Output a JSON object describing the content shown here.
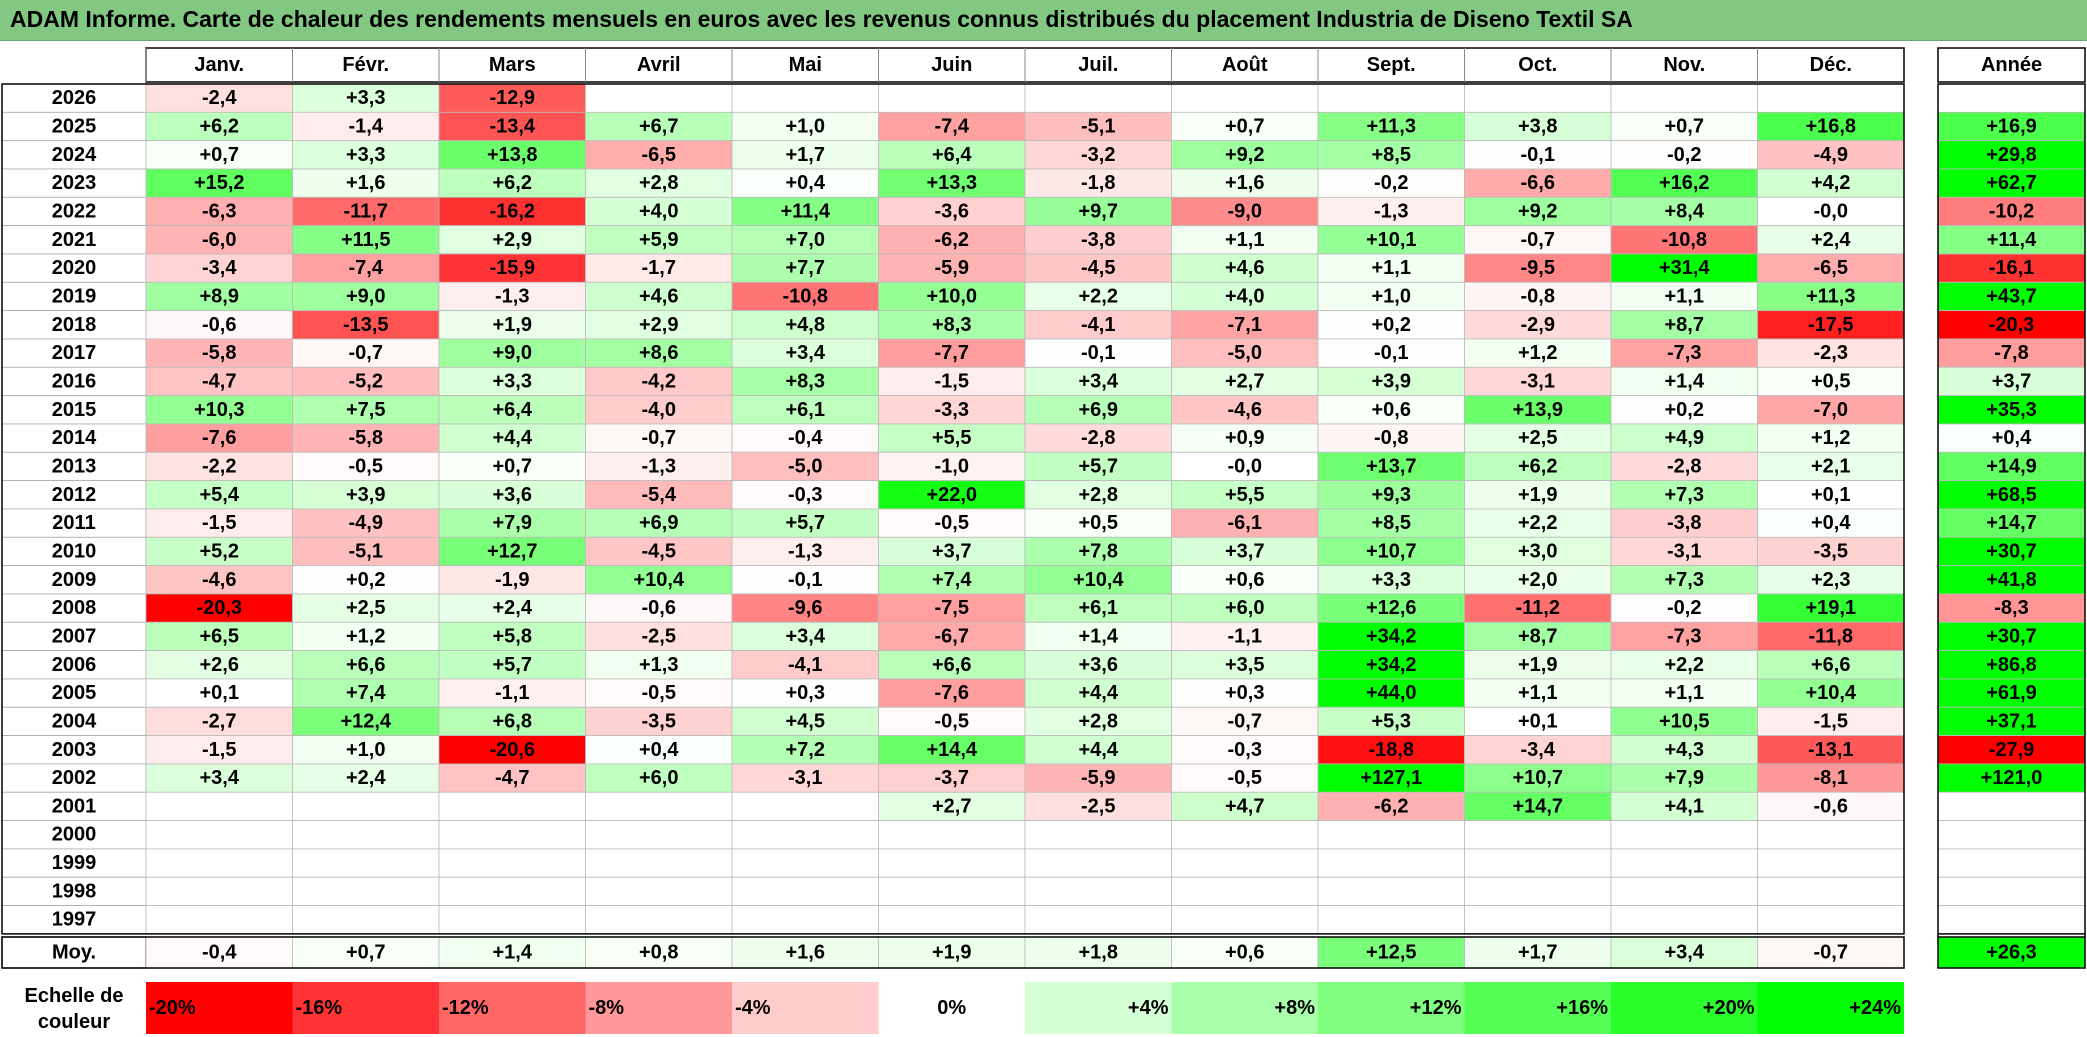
{
  "title": "ADAM Informe. Carte de chaleur des rendements mensuels en euros avec les revenus connus distribués du placement Industria de Diseno Textil SA",
  "chart_data": {
    "type": "heatmap",
    "title": "ADAM Informe. Carte de chaleur des rendements mensuels en euros avec les revenus connus distribués du placement Industria de Diseno Textil SA",
    "months": [
      "Janv.",
      "Févr.",
      "Mars",
      "Avril",
      "Mai",
      "Juin",
      "Juil.",
      "Août",
      "Sept.",
      "Oct.",
      "Nov.",
      "Déc."
    ],
    "year_header": "Année",
    "rows": [
      {
        "year": "2026",
        "values": [
          "-2,4",
          "+3,3",
          "-12,9",
          "",
          "",
          "",
          "",
          "",
          "",
          "",
          "",
          ""
        ],
        "annual": ""
      },
      {
        "year": "2025",
        "values": [
          "+6,2",
          "-1,4",
          "-13,4",
          "+6,7",
          "+1,0",
          "-7,4",
          "-5,1",
          "+0,7",
          "+11,3",
          "+3,8",
          "+0,7",
          "+16,8"
        ],
        "annual": "+16,9"
      },
      {
        "year": "2024",
        "values": [
          "+0,7",
          "+3,3",
          "+13,8",
          "-6,5",
          "+1,7",
          "+6,4",
          "-3,2",
          "+9,2",
          "+8,5",
          "-0,1",
          "-0,2",
          "-4,9"
        ],
        "annual": "+29,8"
      },
      {
        "year": "2023",
        "values": [
          "+15,2",
          "+1,6",
          "+6,2",
          "+2,8",
          "+0,4",
          "+13,3",
          "-1,8",
          "+1,6",
          "-0,2",
          "-6,6",
          "+16,2",
          "+4,2"
        ],
        "annual": "+62,7"
      },
      {
        "year": "2022",
        "values": [
          "-6,3",
          "-11,7",
          "-16,2",
          "+4,0",
          "+11,4",
          "-3,6",
          "+9,7",
          "-9,0",
          "-1,3",
          "+9,2",
          "+8,4",
          "-0,0"
        ],
        "annual": "-10,2"
      },
      {
        "year": "2021",
        "values": [
          "-6,0",
          "+11,5",
          "+2,9",
          "+5,9",
          "+7,0",
          "-6,2",
          "-3,8",
          "+1,1",
          "+10,1",
          "-0,7",
          "-10,8",
          "+2,4"
        ],
        "annual": "+11,4"
      },
      {
        "year": "2020",
        "values": [
          "-3,4",
          "-7,4",
          "-15,9",
          "-1,7",
          "+7,7",
          "-5,9",
          "-4,5",
          "+4,6",
          "+1,1",
          "-9,5",
          "+31,4",
          "-6,5"
        ],
        "annual": "-16,1"
      },
      {
        "year": "2019",
        "values": [
          "+8,9",
          "+9,0",
          "-1,3",
          "+4,6",
          "-10,8",
          "+10,0",
          "+2,2",
          "+4,0",
          "+1,0",
          "-0,8",
          "+1,1",
          "+11,3"
        ],
        "annual": "+43,7"
      },
      {
        "year": "2018",
        "values": [
          "-0,6",
          "-13,5",
          "+1,9",
          "+2,9",
          "+4,8",
          "+8,3",
          "-4,1",
          "-7,1",
          "+0,2",
          "-2,9",
          "+8,7",
          "-17,5"
        ],
        "annual": "-20,3"
      },
      {
        "year": "2017",
        "values": [
          "-5,8",
          "-0,7",
          "+9,0",
          "+8,6",
          "+3,4",
          "-7,7",
          "-0,1",
          "-5,0",
          "-0,1",
          "+1,2",
          "-7,3",
          "-2,3"
        ],
        "annual": "-7,8"
      },
      {
        "year": "2016",
        "values": [
          "-4,7",
          "-5,2",
          "+3,3",
          "-4,2",
          "+8,3",
          "-1,5",
          "+3,4",
          "+2,7",
          "+3,9",
          "-3,1",
          "+1,4",
          "+0,5"
        ],
        "annual": "+3,7"
      },
      {
        "year": "2015",
        "values": [
          "+10,3",
          "+7,5",
          "+6,4",
          "-4,0",
          "+6,1",
          "-3,3",
          "+6,9",
          "-4,6",
          "+0,6",
          "+13,9",
          "+0,2",
          "-7,0"
        ],
        "annual": "+35,3"
      },
      {
        "year": "2014",
        "values": [
          "-7,6",
          "-5,8",
          "+4,4",
          "-0,7",
          "-0,4",
          "+5,5",
          "-2,8",
          "+0,9",
          "-0,8",
          "+2,5",
          "+4,9",
          "+1,2"
        ],
        "annual": "+0,4"
      },
      {
        "year": "2013",
        "values": [
          "-2,2",
          "-0,5",
          "+0,7",
          "-1,3",
          "-5,0",
          "-1,0",
          "+5,7",
          "-0,0",
          "+13,7",
          "+6,2",
          "-2,8",
          "+2,1"
        ],
        "annual": "+14,9"
      },
      {
        "year": "2012",
        "values": [
          "+5,4",
          "+3,9",
          "+3,6",
          "-5,4",
          "-0,3",
          "+22,0",
          "+2,8",
          "+5,5",
          "+9,3",
          "+1,9",
          "+7,3",
          "+0,1"
        ],
        "annual": "+68,5"
      },
      {
        "year": "2011",
        "values": [
          "-1,5",
          "-4,9",
          "+7,9",
          "+6,9",
          "+5,7",
          "-0,5",
          "+0,5",
          "-6,1",
          "+8,5",
          "+2,2",
          "-3,8",
          "+0,4"
        ],
        "annual": "+14,7"
      },
      {
        "year": "2010",
        "values": [
          "+5,2",
          "-5,1",
          "+12,7",
          "-4,5",
          "-1,3",
          "+3,7",
          "+7,8",
          "+3,7",
          "+10,7",
          "+3,0",
          "-3,1",
          "-3,5"
        ],
        "annual": "+30,7"
      },
      {
        "year": "2009",
        "values": [
          "-4,6",
          "+0,2",
          "-1,9",
          "+10,4",
          "-0,1",
          "+7,4",
          "+10,4",
          "+0,6",
          "+3,3",
          "+2,0",
          "+7,3",
          "+2,3"
        ],
        "annual": "+41,8"
      },
      {
        "year": "2008",
        "values": [
          "-20,3",
          "+2,5",
          "+2,4",
          "-0,6",
          "-9,6",
          "-7,5",
          "+6,1",
          "+6,0",
          "+12,6",
          "-11,2",
          "-0,2",
          "+19,1"
        ],
        "annual": "-8,3"
      },
      {
        "year": "2007",
        "values": [
          "+6,5",
          "+1,2",
          "+5,8",
          "-2,5",
          "+3,4",
          "-6,7",
          "+1,4",
          "-1,1",
          "+34,2",
          "+8,7",
          "-7,3",
          "-11,8"
        ],
        "annual": "+30,7"
      },
      {
        "year": "2006",
        "values": [
          "+2,6",
          "+6,6",
          "+5,7",
          "+1,3",
          "-4,1",
          "+6,6",
          "+3,6",
          "+3,5",
          "+34,2",
          "+1,9",
          "+2,2",
          "+6,6"
        ],
        "annual": "+86,8"
      },
      {
        "year": "2005",
        "values": [
          "+0,1",
          "+7,4",
          "-1,1",
          "-0,5",
          "+0,3",
          "-7,6",
          "+4,4",
          "+0,3",
          "+44,0",
          "+1,1",
          "+1,1",
          "+10,4"
        ],
        "annual": "+61,9"
      },
      {
        "year": "2004",
        "values": [
          "-2,7",
          "+12,4",
          "+6,8",
          "-3,5",
          "+4,5",
          "-0,5",
          "+2,8",
          "-0,7",
          "+5,3",
          "+0,1",
          "+10,5",
          "-1,5"
        ],
        "annual": "+37,1"
      },
      {
        "year": "2003",
        "values": [
          "-1,5",
          "+1,0",
          "-20,6",
          "+0,4",
          "+7,2",
          "+14,4",
          "+4,4",
          "-0,3",
          "-18,8",
          "-3,4",
          "+4,3",
          "-13,1"
        ],
        "annual": "-27,9"
      },
      {
        "year": "2002",
        "values": [
          "+3,4",
          "+2,4",
          "-4,7",
          "+6,0",
          "-3,1",
          "-3,7",
          "-5,9",
          "-0,5",
          "+127,1",
          "+10,7",
          "+7,9",
          "-8,1"
        ],
        "annual": "+121,0"
      },
      {
        "year": "2001",
        "values": [
          "",
          "",
          "",
          "",
          "",
          "+2,7",
          "-2,5",
          "+4,7",
          "-6,2",
          "+14,7",
          "+4,1",
          "-0,6"
        ],
        "annual": ""
      },
      {
        "year": "2000",
        "values": [
          "",
          "",
          "",
          "",
          "",
          "",
          "",
          "",
          "",
          "",
          "",
          ""
        ],
        "annual": ""
      },
      {
        "year": "1999",
        "values": [
          "",
          "",
          "",
          "",
          "",
          "",
          "",
          "",
          "",
          "",
          "",
          ""
        ],
        "annual": ""
      },
      {
        "year": "1998",
        "values": [
          "",
          "",
          "",
          "",
          "",
          "",
          "",
          "",
          "",
          "",
          "",
          ""
        ],
        "annual": ""
      },
      {
        "year": "1997",
        "values": [
          "",
          "",
          "",
          "",
          "",
          "",
          "",
          "",
          "",
          "",
          "",
          ""
        ],
        "annual": ""
      }
    ],
    "average": {
      "label": "Moy.",
      "values": [
        "-0,4",
        "+0,7",
        "+1,4",
        "+0,8",
        "+1,6",
        "+1,9",
        "+1,8",
        "+0,6",
        "+12,5",
        "+1,7",
        "+3,4",
        "-0,7"
      ],
      "annual": "+26,3"
    },
    "scale": {
      "label_line1": "Echelle de",
      "label_line2": "couleur",
      "items": [
        {
          "label": "-20%",
          "value": -20
        },
        {
          "label": "-16%",
          "value": -16
        },
        {
          "label": "-12%",
          "value": -12
        },
        {
          "label": "-8%",
          "value": -8
        },
        {
          "label": "-4%",
          "value": -4
        },
        {
          "label": "0%",
          "value": 0
        },
        {
          "label": "+4%",
          "value": 4
        },
        {
          "label": "+8%",
          "value": 8
        },
        {
          "label": "+12%",
          "value": 12
        },
        {
          "label": "+16%",
          "value": 16
        },
        {
          "label": "+20%",
          "value": 20
        },
        {
          "label": "+24%",
          "value": 24
        }
      ]
    },
    "colors": {
      "negative": "#ff0000",
      "neutral": "#ffffff",
      "positive": "#00ff00",
      "title_bar": "#82c882"
    }
  }
}
